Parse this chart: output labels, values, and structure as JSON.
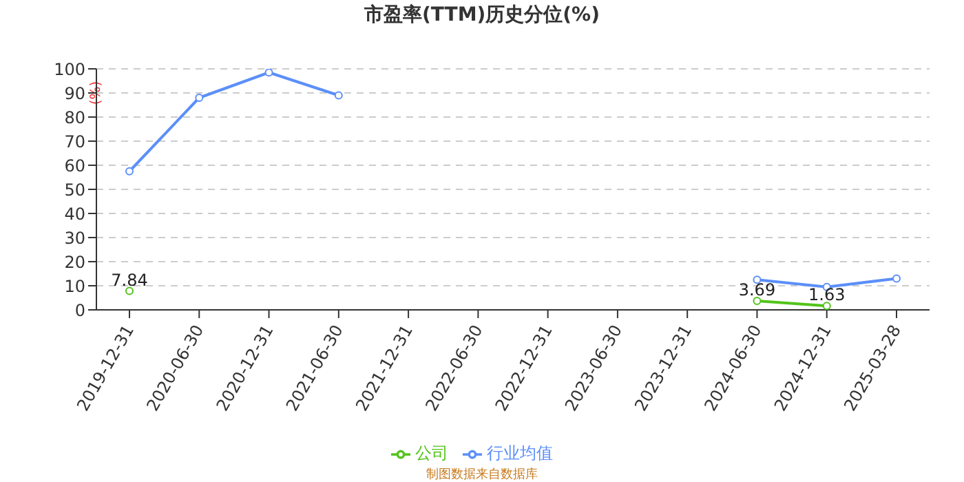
{
  "chart_data": {
    "type": "line",
    "title": "市盈率(TTM)历史分位(%)",
    "ylabel": "(%)",
    "categories": [
      "2019-12-31",
      "2020-06-30",
      "2020-12-31",
      "2021-06-30",
      "2021-12-31",
      "2022-06-30",
      "2022-12-31",
      "2023-06-30",
      "2023-12-31",
      "2024-06-30",
      "2024-12-31",
      "2025-03-28"
    ],
    "series": [
      {
        "name": "公司",
        "color": "#52c41a",
        "values": [
          7.84,
          null,
          null,
          null,
          null,
          null,
          null,
          null,
          null,
          3.69,
          1.63,
          null
        ],
        "value_labels": [
          "7.84",
          null,
          null,
          null,
          null,
          null,
          null,
          null,
          null,
          "3.69",
          "1.63",
          null
        ]
      },
      {
        "name": "行业均值",
        "color": "#5b8ff9",
        "values": [
          57.5,
          88,
          98.5,
          89,
          null,
          null,
          null,
          null,
          null,
          12.5,
          9.5,
          13
        ]
      }
    ],
    "ylim": [
      0,
      100
    ],
    "yticks": [
      0,
      10,
      20,
      30,
      40,
      50,
      60,
      70,
      80,
      90,
      100
    ],
    "grid": "y",
    "legend": "bottom",
    "marker": "circle",
    "line_style": "solid",
    "annotations": [
      "制图数据来自数据库"
    ]
  }
}
